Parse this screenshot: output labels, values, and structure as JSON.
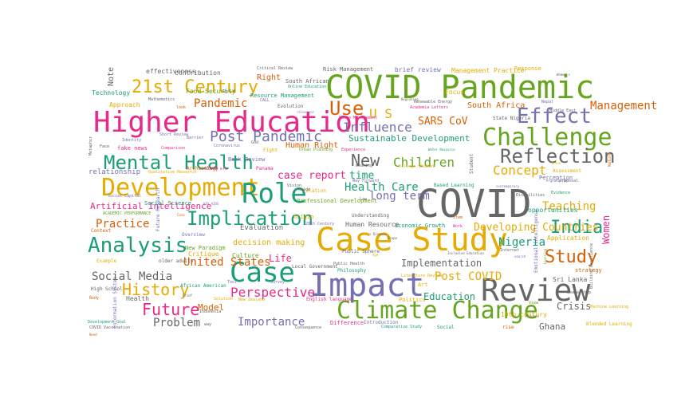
{
  "words": [
    {
      "text": "COVID Pandemic",
      "color": "#66a61e"
    },
    {
      "text": "Higher Education",
      "color": "#e7298a"
    },
    {
      "text": "Case Study",
      "color": "#e6ab02"
    },
    {
      "text": "Impact",
      "color": "#7570b3"
    },
    {
      "text": "COVID",
      "color": "#666666"
    },
    {
      "text": "Review",
      "color": "#666666"
    },
    {
      "text": "Climate Change",
      "color": "#66a61e"
    },
    {
      "text": "Challenge",
      "color": "#66a61e"
    },
    {
      "text": "Development",
      "color": "#e6ab02"
    },
    {
      "text": "Role",
      "color": "#1b9e77"
    },
    {
      "text": "Case",
      "color": "#1b9e77"
    },
    {
      "text": "Analysis",
      "color": "#1b9e77"
    },
    {
      "text": "Mental Health",
      "color": "#1b9e77"
    },
    {
      "text": "21st Century",
      "color": "#e6ab02"
    },
    {
      "text": "Effect",
      "color": "#7570b3"
    },
    {
      "text": "Reflection",
      "color": "#666666"
    },
    {
      "text": "Use",
      "color": "#d95f02"
    },
    {
      "text": "Implication",
      "color": "#1b9e77"
    },
    {
      "text": "Study",
      "color": "#d95f02"
    },
    {
      "text": "India",
      "color": "#1b9e77"
    },
    {
      "text": "Future",
      "color": "#e7298a"
    },
    {
      "text": "History",
      "color": "#e6ab02"
    },
    {
      "text": "Post Pandemic",
      "color": "#7570b3"
    },
    {
      "text": "New",
      "color": "#666666"
    },
    {
      "text": "Children",
      "color": "#66a61e"
    },
    {
      "text": "Influence",
      "color": "#7570b3"
    },
    {
      "text": "Concept",
      "color": "#e6ab02"
    },
    {
      "text": "U S",
      "color": "#e6ab02"
    },
    {
      "text": "Social Media",
      "color": "#666666"
    },
    {
      "text": "Perspective",
      "color": "#e7298a"
    },
    {
      "text": "Importance",
      "color": "#7570b3"
    },
    {
      "text": "Problem",
      "color": "#666666"
    },
    {
      "text": "Teaching",
      "color": "#e6ab02"
    },
    {
      "text": "Practice",
      "color": "#d95f02"
    },
    {
      "text": "Health Care",
      "color": "#1b9e77"
    },
    {
      "text": "Pandemic",
      "color": "#d95f02"
    },
    {
      "text": "Need",
      "color": "#d95f02"
    },
    {
      "text": "Management",
      "color": "#d95f02"
    },
    {
      "text": "Women",
      "color": "#e7298a"
    },
    {
      "text": "Nigeria",
      "color": "#1b9e77"
    },
    {
      "text": "United States",
      "color": "#d95f02"
    },
    {
      "text": "Post COVID",
      "color": "#e6ab02"
    },
    {
      "text": "case report",
      "color": "#e7298a"
    },
    {
      "text": "time",
      "color": "#1b9e77"
    },
    {
      "text": "long term",
      "color": "#7570b3"
    },
    {
      "text": "SARS CoV",
      "color": "#d95f02"
    },
    {
      "text": "Developing Countries",
      "color": "#e6ab02"
    },
    {
      "text": "Implementation",
      "color": "#666666"
    },
    {
      "text": "Life",
      "color": "#e7298a"
    },
    {
      "text": "Education",
      "color": "#1b9e77"
    },
    {
      "text": "Artificial Intelligence",
      "color": "#e7298a"
    },
    {
      "text": "Sustainable Development",
      "color": "#1b9e77"
    },
    {
      "text": "Human Right",
      "color": "#d95f02"
    },
    {
      "text": "decision making",
      "color": "#e6ab02"
    },
    {
      "text": "Model",
      "color": "#d95f02"
    },
    {
      "text": "Crisis",
      "color": "#666666"
    },
    {
      "text": "Ghana",
      "color": "#666666"
    },
    {
      "text": "South Africa",
      "color": "#d95f02"
    },
    {
      "text": "relationship",
      "color": "#7570b3"
    },
    {
      "text": "Evaluation",
      "color": "#666666"
    },
    {
      "text": "Human Resource",
      "color": "#666666"
    },
    {
      "text": "19th century",
      "color": "#e6ab02"
    },
    {
      "text": "Sri Lanka",
      "color": "#666666"
    },
    {
      "text": "Health",
      "color": "#666666"
    },
    {
      "text": "Politics",
      "color": "#e6ab02"
    },
    {
      "text": "Culture",
      "color": "#66a61e"
    },
    {
      "text": "Critique",
      "color": "#e6ab02"
    },
    {
      "text": "Art",
      "color": "#e6ab02"
    },
    {
      "text": "Note",
      "color": "#666666"
    },
    {
      "text": "Right",
      "color": "#d95f02"
    },
    {
      "text": "effectiveness",
      "color": "#666666"
    },
    {
      "text": "contribution",
      "color": "#666666"
    },
    {
      "text": "opportunities",
      "color": "#1b9e77"
    },
    {
      "text": "Application",
      "color": "#e6ab02"
    },
    {
      "text": "Economic Growth",
      "color": "#1b9e77"
    },
    {
      "text": "Technology",
      "color": "#1b9e77"
    },
    {
      "text": "Approach",
      "color": "#e6ab02"
    },
    {
      "text": "Food Security",
      "color": "#66a61e"
    },
    {
      "text": "Risk Management",
      "color": "#666666"
    },
    {
      "text": "brief review",
      "color": "#7570b3"
    },
    {
      "text": "Management Practice",
      "color": "#e6ab02"
    },
    {
      "text": "Response",
      "color": "#e6ab02"
    },
    {
      "text": "South African",
      "color": "#666666"
    },
    {
      "text": "Resource Management",
      "color": "#1b9e77"
    },
    {
      "text": "Book Review",
      "color": "#7570b3"
    },
    {
      "text": "fake news",
      "color": "#e7298a"
    },
    {
      "text": "relation",
      "color": "#e6ab02"
    },
    {
      "text": "Professional Development",
      "color": "#66a61e"
    },
    {
      "text": "Based Learning",
      "color": "#1b9e77"
    },
    {
      "text": "Social Science",
      "color": "#1b9e77"
    },
    {
      "text": "Perception",
      "color": "#7570b3"
    },
    {
      "text": "Assessment",
      "color": "#e6ab02"
    },
    {
      "text": "Origin",
      "color": "#e6ab02"
    },
    {
      "text": "New Paradigm",
      "color": "#66a61e"
    },
    {
      "text": "Overview",
      "color": "#7570b3"
    },
    {
      "text": "strategy",
      "color": "#d95f02"
    },
    {
      "text": "Local Government",
      "color": "#666666"
    },
    {
      "text": "Philosophy",
      "color": "#1b9e77"
    },
    {
      "text": "Difference",
      "color": "#e7298a"
    },
    {
      "text": "English language",
      "color": "#e7298a"
    },
    {
      "text": "Example",
      "color": "#e6ab02"
    },
    {
      "text": "older adults",
      "color": "#666666"
    },
    {
      "text": "Context",
      "color": "#d95f02"
    },
    {
      "text": "High School",
      "color": "#666666"
    },
    {
      "text": "State Nigeria",
      "color": "#666666"
    },
    {
      "text": "Student",
      "color": "#666666"
    },
    {
      "text": "Machine Learning",
      "color": "#e6ab02"
    },
    {
      "text": "Social",
      "color": "#1b9e77"
    },
    {
      "text": "rise",
      "color": "#d95f02"
    },
    {
      "text": "Blended Learning",
      "color": "#e6ab02"
    },
    {
      "text": "Introduction",
      "color": "#7570b3"
    },
    {
      "text": "Comparative Study",
      "color": "#1b9e77"
    },
    {
      "text": "Leadership",
      "color": "#666666"
    },
    {
      "text": "Critical Review",
      "color": "#666666"
    },
    {
      "text": "Evolution",
      "color": "#666666"
    },
    {
      "text": "Online Education",
      "color": "#1b9e77"
    },
    {
      "text": "Renewable Energy",
      "color": "#666666"
    },
    {
      "text": "Academia Letters",
      "color": "#e7298a"
    },
    {
      "text": "Nepal",
      "color": "#7570b3"
    },
    {
      "text": "Waste Management",
      "color": "#e7298a"
    },
    {
      "text": "Mathematics",
      "color": "#666666"
    },
    {
      "text": "Identity",
      "color": "#7570b3"
    },
    {
      "text": "Short Review",
      "color": "#7570b3"
    },
    {
      "text": "Barrier",
      "color": "#7570b3"
    },
    {
      "text": "Comparison",
      "color": "#e7298a"
    },
    {
      "text": "Coronavirus",
      "color": "#7570b3"
    },
    {
      "text": "God",
      "color": "#666666"
    },
    {
      "text": "Fight",
      "color": "#e6ab02"
    },
    {
      "text": "Archaeology",
      "color": "#d95f02"
    },
    {
      "text": "COVID era",
      "color": "#e7298a"
    },
    {
      "text": "Qualitative Research",
      "color": "#e6ab02"
    },
    {
      "text": "Social Capital",
      "color": "#7570b3"
    },
    {
      "text": "ACADEMIC PERFORMANCE",
      "color": "#66a61e"
    },
    {
      "text": "HIV AIDS",
      "color": "#7570b3"
    },
    {
      "text": "20th Century",
      "color": "#7570b3"
    },
    {
      "text": "Understanding",
      "color": "#666666"
    },
    {
      "text": "Public Sphere",
      "color": "#666666"
    },
    {
      "text": "New Zealand",
      "color": "#e6ab02"
    },
    {
      "text": "African American",
      "color": "#1b9e77"
    },
    {
      "text": "Indonesia",
      "color": "#666666"
    },
    {
      "text": "Solution",
      "color": "#e6ab02"
    },
    {
      "text": "Body",
      "color": "#d95f02"
    },
    {
      "text": "Development Goal",
      "color": "#1b9e77"
    },
    {
      "text": "COVID Vaccination",
      "color": "#666666"
    },
    {
      "text": "Consequence",
      "color": "#666666"
    },
    {
      "text": "Information System",
      "color": "#7570b3"
    },
    {
      "text": "Emotional Intelligence",
      "color": "#7570b3"
    },
    {
      "text": "Building Resilience",
      "color": "#666666"
    },
    {
      "text": "Metaphor",
      "color": "#666666"
    },
    {
      "text": "Nature",
      "color": "#d95f02"
    },
    {
      "text": "Future Research",
      "color": "#7570b3"
    },
    {
      "text": "Women s",
      "color": "#666666"
    },
    {
      "text": "Middle East",
      "color": "#666666"
    },
    {
      "text": "Literature Review",
      "color": "#e6ab02"
    },
    {
      "text": "Public Health",
      "color": "#666666"
    },
    {
      "text": "Experience",
      "color": "#e7298a"
    },
    {
      "text": "Urban Planning",
      "color": "#66a61e"
    },
    {
      "text": "College Student",
      "color": "#e6ab02"
    },
    {
      "text": "Way Forward",
      "color": "#7570b3"
    },
    {
      "text": "meaning",
      "color": "#666666"
    },
    {
      "text": "Law",
      "color": "#666666"
    },
    {
      "text": "Work",
      "color": "#e7298a"
    },
    {
      "text": "Process",
      "color": "#666666"
    },
    {
      "text": "Afghanistan",
      "color": "#7570b3"
    },
    {
      "text": "proposal",
      "color": "#666666"
    },
    {
      "text": "Evidence",
      "color": "#1b9e77"
    },
    {
      "text": "Vision",
      "color": "#666666"
    },
    {
      "text": "Guide",
      "color": "#666666"
    },
    {
      "text": "Beginning",
      "color": "#666666"
    },
    {
      "text": "Water Resource",
      "color": "#1b9e77"
    },
    {
      "text": "Issue",
      "color": "#e6ab02"
    },
    {
      "text": "Tool",
      "color": "#7570b3"
    },
    {
      "text": "survey",
      "color": "#7570b3"
    },
    {
      "text": "way",
      "color": "#666666"
    },
    {
      "text": "Focus",
      "color": "#e6ab02"
    },
    {
      "text": "Don t",
      "color": "#666666"
    },
    {
      "text": "CALL",
      "color": "#7570b3"
    },
    {
      "text": "look",
      "color": "#d95f02"
    },
    {
      "text": "Face",
      "color": "#666666"
    },
    {
      "text": "relevance",
      "color": "#7570b3"
    },
    {
      "text": "Panama",
      "color": "#e7298a"
    },
    {
      "text": "Brief",
      "color": "#666666"
    },
    {
      "text": "Internet",
      "color": "#666666"
    },
    {
      "text": "search",
      "color": "#7570b3"
    },
    {
      "text": "contemporary",
      "color": "#7570b3"
    },
    {
      "text": "Disabilities",
      "color": "#666666"
    },
    {
      "text": "Item",
      "color": "#d95f02"
    },
    {
      "text": "Scope",
      "color": "#666666"
    },
    {
      "text": "Inclusive Education",
      "color": "#666666"
    },
    {
      "text": "Learning",
      "color": "#66a61e"
    },
    {
      "text": "Age",
      "color": "#e6ab02"
    },
    {
      "text": "s Disease",
      "color": "#666666"
    },
    {
      "text": "View",
      "color": "#66a61e"
    },
    {
      "text": "Case",
      "color": "#d95f02"
    }
  ]
}
